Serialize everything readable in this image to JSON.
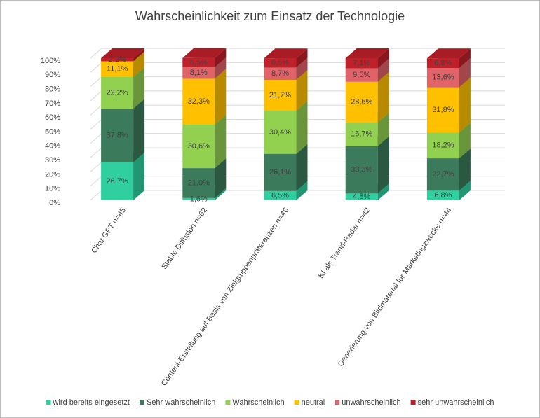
{
  "chart_data": {
    "type": "stacked-bar-3d",
    "title": "Wahrscheinlichkeit zum Einsatz der Technologie",
    "categories": [
      "Chat GPT n=45",
      "Stable Diffusion n=62",
      "Content-Erstellung auf Basis von Zielgruppenpräferenzen n=46",
      "KI als Trend-Radar n=42",
      "Generierung von Bildmaterial für Marketingzwecke n=44"
    ],
    "series": [
      {
        "name": "wird bereits eingesetzt",
        "color": "#2fcf9f",
        "values": [
          26.7,
          1.6,
          6.5,
          4.8,
          6.8
        ],
        "value_labels": [
          "26,7%",
          "1,6%",
          "6,5%",
          "4,8%",
          "6,8%"
        ]
      },
      {
        "name": "Sehr wahrscheinlich",
        "color": "#3b7a5a",
        "values": [
          37.8,
          21.0,
          26.1,
          33.3,
          22.7
        ],
        "value_labels": [
          "37,8%",
          "21,0%",
          "26,1%",
          "33,3%",
          "22,7%"
        ]
      },
      {
        "name": "Wahrscheinlich",
        "color": "#92d050",
        "values": [
          22.2,
          30.6,
          30.4,
          16.7,
          18.2
        ],
        "value_labels": [
          "22,2%",
          "30,6%",
          "30,4%",
          "16,7%",
          "18,2%"
        ]
      },
      {
        "name": "neutral",
        "color": "#ffc000",
        "values": [
          11.1,
          32.3,
          21.7,
          28.6,
          31.8
        ],
        "value_labels": [
          "11,1%",
          "32,3%",
          "21,7%",
          "28,6%",
          "31,8%"
        ]
      },
      {
        "name": "unwahrscheinlich",
        "color": "#e0636a",
        "values": [
          null,
          8.1,
          8.7,
          9.5,
          13.6
        ],
        "value_labels": [
          null,
          "8,1%",
          "8,7%",
          "9,5%",
          "13,6%"
        ]
      },
      {
        "name": "sehr unwahrscheinlich",
        "color": "#c0202a",
        "values": [
          2.2,
          6.5,
          6.5,
          7.1,
          6.8
        ],
        "value_labels": [
          "2,2%",
          "6,5%",
          "6,5%",
          "7,1%",
          "6,8%"
        ]
      }
    ],
    "ylim": [
      0,
      100
    ],
    "yticks": [
      {
        "value": 0,
        "label": "0%"
      },
      {
        "value": 10,
        "label": "10%"
      },
      {
        "value": 20,
        "label": "20%"
      },
      {
        "value": 30,
        "label": "30%"
      },
      {
        "value": 40,
        "label": "40%"
      },
      {
        "value": 50,
        "label": "50%"
      },
      {
        "value": 60,
        "label": "60%"
      },
      {
        "value": 70,
        "label": "70%"
      },
      {
        "value": 80,
        "label": "80%"
      },
      {
        "value": 90,
        "label": "90%"
      },
      {
        "value": 100,
        "label": "100%"
      }
    ],
    "grid": true,
    "legend": "bottom"
  }
}
